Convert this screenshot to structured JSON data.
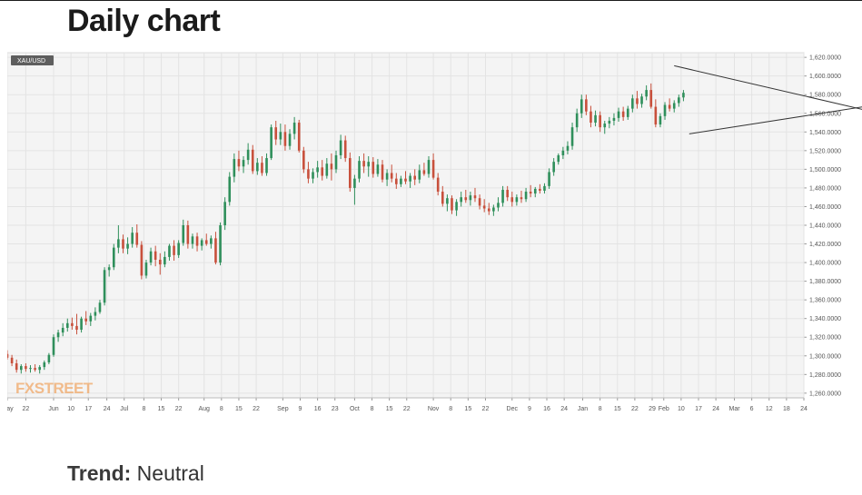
{
  "heading": "Daily chart",
  "trend": {
    "label": "Trend:",
    "value": "Neutral"
  },
  "colors": {
    "up": "#2f8f5b",
    "down": "#c8503c",
    "grid": "#e3e3e3",
    "plot_bg": "#f4f4f4",
    "trendline": "#333333"
  },
  "chart_data": {
    "type": "candlestick",
    "symbol": "XAU/USD",
    "watermark": "FXSTREET",
    "ylim": [
      1255,
      1625
    ],
    "y_ticks": [
      1620,
      1600,
      1580,
      1560,
      1540,
      1520,
      1500,
      1480,
      1460,
      1440,
      1420,
      1400,
      1380,
      1360,
      1340,
      1320,
      1300,
      1280,
      1260
    ],
    "y_tick_labels": [
      "1,620.0000",
      "1,600.0000",
      "1,580.0000",
      "1,560.0000",
      "1,540.0000",
      "1,520.0000",
      "1,500.0000",
      "1,480.0000",
      "1,460.0000",
      "1,440.0000",
      "1,420.0000",
      "1,400.0000",
      "1,380.0000",
      "1,360.0000",
      "1,340.0000",
      "1,320.0000",
      "1,300.0000",
      "1,280.0000",
      "1,260.0000"
    ],
    "x_tick_labels": [
      "May",
      "22",
      "Jun",
      "10",
      "17",
      "24",
      "Jul",
      "8",
      "15",
      "22",
      "Aug",
      "8",
      "15",
      "22",
      "Sep",
      "9",
      "16",
      "23",
      "Oct",
      "8",
      "15",
      "22",
      "Nov",
      "8",
      "15",
      "22",
      "Dec",
      "9",
      "16",
      "24",
      "Jan",
      "8",
      "15",
      "22",
      "29",
      "Feb",
      "10",
      "17",
      "24",
      "Mar",
      "6",
      "12",
      "18",
      "24"
    ],
    "x_tick_index": [
      0,
      16,
      40,
      55,
      70,
      86,
      101,
      118,
      133,
      148,
      170,
      185,
      200,
      215,
      238,
      253,
      268,
      283,
      300,
      315,
      330,
      345,
      368,
      383,
      398,
      413,
      436,
      451,
      466,
      481,
      497,
      512,
      527,
      542,
      557,
      567,
      582,
      597,
      612,
      628,
      643,
      658,
      673,
      688
    ],
    "grid": true,
    "trendlines": [
      {
        "from": [
          576,
          1611
        ],
        "to": [
          760,
          1558
        ]
      },
      {
        "from": [
          589,
          1538
        ],
        "to": [
          760,
          1571
        ]
      }
    ],
    "candles": [
      [
        0,
        1302,
        1306,
        1296,
        1298
      ],
      [
        4,
        1298,
        1301,
        1289,
        1292
      ],
      [
        8,
        1292,
        1296,
        1282,
        1285
      ],
      [
        12,
        1285,
        1291,
        1281,
        1289
      ],
      [
        16,
        1289,
        1292,
        1283,
        1286
      ],
      [
        20,
        1286,
        1290,
        1282,
        1287
      ],
      [
        24,
        1287,
        1291,
        1283,
        1285
      ],
      [
        28,
        1285,
        1290,
        1281,
        1288
      ],
      [
        32,
        1288,
        1295,
        1285,
        1293
      ],
      [
        36,
        1293,
        1303,
        1291,
        1301
      ],
      [
        40,
        1301,
        1323,
        1299,
        1320
      ],
      [
        44,
        1320,
        1328,
        1315,
        1325
      ],
      [
        48,
        1325,
        1335,
        1321,
        1330
      ],
      [
        52,
        1330,
        1340,
        1326,
        1335
      ],
      [
        56,
        1335,
        1341,
        1328,
        1332
      ],
      [
        60,
        1332,
        1345,
        1323,
        1328
      ],
      [
        64,
        1328,
        1342,
        1325,
        1340
      ],
      [
        68,
        1340,
        1348,
        1333,
        1337
      ],
      [
        72,
        1337,
        1346,
        1332,
        1343
      ],
      [
        76,
        1343,
        1352,
        1338,
        1347
      ],
      [
        80,
        1347,
        1360,
        1345,
        1357
      ],
      [
        84,
        1357,
        1395,
        1354,
        1392
      ],
      [
        88,
        1392,
        1398,
        1385,
        1395
      ],
      [
        92,
        1395,
        1420,
        1392,
        1416
      ],
      [
        96,
        1416,
        1440,
        1410,
        1425
      ],
      [
        100,
        1425,
        1430,
        1410,
        1415
      ],
      [
        104,
        1415,
        1427,
        1409,
        1420
      ],
      [
        108,
        1420,
        1438,
        1416,
        1432
      ],
      [
        112,
        1432,
        1441,
        1416,
        1419
      ],
      [
        116,
        1419,
        1423,
        1382,
        1386
      ],
      [
        120,
        1386,
        1403,
        1383,
        1400
      ],
      [
        124,
        1400,
        1416,
        1397,
        1412
      ],
      [
        128,
        1412,
        1418,
        1396,
        1403
      ],
      [
        132,
        1403,
        1410,
        1387,
        1398
      ],
      [
        136,
        1398,
        1412,
        1395,
        1406
      ],
      [
        140,
        1406,
        1420,
        1402,
        1418
      ],
      [
        144,
        1418,
        1424,
        1402,
        1408
      ],
      [
        148,
        1408,
        1424,
        1405,
        1421
      ],
      [
        152,
        1421,
        1446,
        1418,
        1440
      ],
      [
        156,
        1440,
        1445,
        1415,
        1420
      ],
      [
        160,
        1420,
        1431,
        1415,
        1428
      ],
      [
        164,
        1428,
        1432,
        1412,
        1418
      ],
      [
        168,
        1418,
        1426,
        1413,
        1424
      ],
      [
        172,
        1424,
        1431,
        1418,
        1420
      ],
      [
        176,
        1420,
        1429,
        1415,
        1426
      ],
      [
        180,
        1426,
        1433,
        1398,
        1400
      ],
      [
        184,
        1400,
        1443,
        1397,
        1440
      ],
      [
        188,
        1440,
        1470,
        1435,
        1465
      ],
      [
        192,
        1465,
        1497,
        1461,
        1492
      ],
      [
        196,
        1492,
        1517,
        1486,
        1511
      ],
      [
        200,
        1511,
        1520,
        1498,
        1503
      ],
      [
        204,
        1503,
        1514,
        1496,
        1510
      ],
      [
        208,
        1510,
        1528,
        1505,
        1521
      ],
      [
        212,
        1521,
        1526,
        1495,
        1498
      ],
      [
        216,
        1498,
        1512,
        1494,
        1507
      ],
      [
        220,
        1507,
        1514,
        1493,
        1496
      ],
      [
        224,
        1496,
        1517,
        1493,
        1512
      ],
      [
        228,
        1512,
        1548,
        1510,
        1545
      ],
      [
        232,
        1545,
        1552,
        1526,
        1532
      ],
      [
        236,
        1532,
        1549,
        1526,
        1540
      ],
      [
        240,
        1540,
        1548,
        1520,
        1525
      ],
      [
        244,
        1525,
        1543,
        1521,
        1538
      ],
      [
        248,
        1538,
        1556,
        1532,
        1550
      ],
      [
        252,
        1550,
        1553,
        1518,
        1520
      ],
      [
        256,
        1520,
        1524,
        1496,
        1500
      ],
      [
        260,
        1500,
        1508,
        1485,
        1490
      ],
      [
        264,
        1490,
        1501,
        1485,
        1497
      ],
      [
        268,
        1497,
        1509,
        1491,
        1502
      ],
      [
        272,
        1502,
        1510,
        1488,
        1493
      ],
      [
        276,
        1493,
        1512,
        1490,
        1506
      ],
      [
        280,
        1506,
        1517,
        1488,
        1500
      ],
      [
        284,
        1500,
        1520,
        1496,
        1515
      ],
      [
        288,
        1515,
        1537,
        1511,
        1531
      ],
      [
        292,
        1531,
        1536,
        1508,
        1512
      ],
      [
        296,
        1512,
        1518,
        1476,
        1480
      ],
      [
        300,
        1480,
        1494,
        1462,
        1490
      ],
      [
        304,
        1490,
        1514,
        1486,
        1509
      ],
      [
        308,
        1509,
        1517,
        1496,
        1503
      ],
      [
        312,
        1503,
        1514,
        1492,
        1508
      ],
      [
        316,
        1508,
        1513,
        1491,
        1495
      ],
      [
        320,
        1495,
        1511,
        1492,
        1505
      ],
      [
        324,
        1505,
        1510,
        1486,
        1489
      ],
      [
        328,
        1489,
        1500,
        1482,
        1496
      ],
      [
        332,
        1496,
        1505,
        1486,
        1490
      ],
      [
        336,
        1490,
        1496,
        1479,
        1484
      ],
      [
        340,
        1484,
        1493,
        1481,
        1490
      ],
      [
        344,
        1490,
        1498,
        1484,
        1487
      ],
      [
        348,
        1487,
        1496,
        1480,
        1493
      ],
      [
        352,
        1493,
        1500,
        1483,
        1489
      ],
      [
        356,
        1489,
        1505,
        1485,
        1499
      ],
      [
        360,
        1499,
        1507,
        1493,
        1495
      ],
      [
        364,
        1495,
        1514,
        1491,
        1510
      ],
      [
        368,
        1510,
        1517,
        1489,
        1491
      ],
      [
        372,
        1491,
        1496,
        1472,
        1476
      ],
      [
        376,
        1476,
        1482,
        1460,
        1463
      ],
      [
        380,
        1463,
        1473,
        1455,
        1469
      ],
      [
        384,
        1469,
        1472,
        1452,
        1456
      ],
      [
        388,
        1456,
        1468,
        1450,
        1465
      ],
      [
        392,
        1465,
        1476,
        1460,
        1470
      ],
      [
        396,
        1470,
        1478,
        1464,
        1467
      ],
      [
        400,
        1467,
        1476,
        1461,
        1472
      ],
      [
        404,
        1472,
        1480,
        1465,
        1469
      ],
      [
        408,
        1469,
        1473,
        1457,
        1461
      ],
      [
        412,
        1461,
        1468,
        1454,
        1458
      ],
      [
        416,
        1458,
        1464,
        1451,
        1455
      ],
      [
        420,
        1455,
        1462,
        1450,
        1459
      ],
      [
        424,
        1459,
        1470,
        1455,
        1464
      ],
      [
        428,
        1464,
        1482,
        1460,
        1478
      ],
      [
        432,
        1478,
        1482,
        1466,
        1470
      ],
      [
        436,
        1470,
        1476,
        1460,
        1465
      ],
      [
        440,
        1465,
        1473,
        1461,
        1470
      ],
      [
        444,
        1470,
        1477,
        1464,
        1468
      ],
      [
        448,
        1468,
        1480,
        1465,
        1476
      ],
      [
        452,
        1476,
        1483,
        1470,
        1474
      ],
      [
        456,
        1474,
        1481,
        1470,
        1479
      ],
      [
        460,
        1479,
        1484,
        1474,
        1477
      ],
      [
        464,
        1477,
        1485,
        1474,
        1482
      ],
      [
        468,
        1482,
        1501,
        1479,
        1497
      ],
      [
        472,
        1497,
        1512,
        1493,
        1508
      ],
      [
        476,
        1508,
        1517,
        1505,
        1515
      ],
      [
        480,
        1515,
        1524,
        1511,
        1520
      ],
      [
        484,
        1520,
        1530,
        1516,
        1525
      ],
      [
        488,
        1525,
        1550,
        1521,
        1545
      ],
      [
        492,
        1545,
        1565,
        1540,
        1560
      ],
      [
        496,
        1560,
        1580,
        1555,
        1575
      ],
      [
        500,
        1575,
        1580,
        1558,
        1562
      ],
      [
        504,
        1562,
        1568,
        1545,
        1550
      ],
      [
        508,
        1550,
        1563,
        1546,
        1558
      ],
      [
        512,
        1558,
        1562,
        1540,
        1545
      ],
      [
        516,
        1545,
        1552,
        1538,
        1549
      ],
      [
        520,
        1549,
        1556,
        1544,
        1552
      ],
      [
        524,
        1552,
        1560,
        1547,
        1555
      ],
      [
        528,
        1555,
        1566,
        1551,
        1562
      ],
      [
        532,
        1562,
        1567,
        1552,
        1556
      ],
      [
        536,
        1556,
        1568,
        1553,
        1565
      ],
      [
        540,
        1565,
        1580,
        1561,
        1576
      ],
      [
        544,
        1576,
        1584,
        1565,
        1570
      ],
      [
        548,
        1570,
        1581,
        1566,
        1578
      ],
      [
        552,
        1578,
        1590,
        1574,
        1585
      ],
      [
        556,
        1585,
        1592,
        1565,
        1567
      ],
      [
        560,
        1567,
        1575,
        1545,
        1548
      ],
      [
        564,
        1548,
        1560,
        1545,
        1557
      ],
      [
        568,
        1557,
        1572,
        1553,
        1569
      ],
      [
        572,
        1569,
        1576,
        1562,
        1565
      ],
      [
        576,
        1565,
        1574,
        1561,
        1571
      ],
      [
        580,
        1571,
        1580,
        1567,
        1577
      ],
      [
        584,
        1577,
        1585,
        1573,
        1582
      ]
    ]
  }
}
